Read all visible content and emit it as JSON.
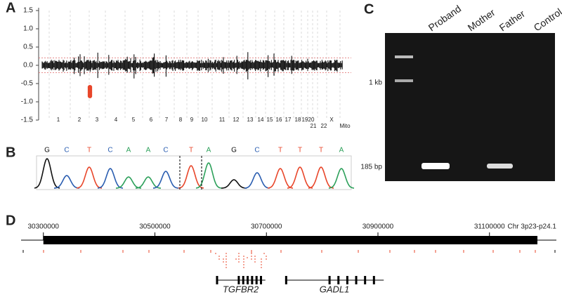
{
  "chart_data": [
    {
      "type": "scatter",
      "label": "A",
      "ylim": [
        -1.5,
        1.5
      ],
      "yticks": [
        1.5,
        {
          "value": 1,
          "label": "1.0"
        },
        0.5,
        {
          "value": 0,
          "label": "0.0"
        },
        -0.5,
        {
          "value": -1,
          "label": "-1.0"
        },
        -1.5
      ],
      "categories": [
        "1",
        "2",
        "3",
        "4",
        "5",
        "6",
        "7",
        "8",
        "9",
        "10",
        "11",
        "12",
        "13",
        "14",
        "15",
        "16",
        "17",
        "18",
        "19",
        "20",
        "21",
        "22",
        "X",
        "Mito"
      ],
      "thresholds": [
        0.2,
        -0.2
      ],
      "highlight": {
        "color": "#e8462a",
        "values": [
          -0.6,
          -0.64,
          -0.68,
          -0.72,
          -0.76,
          -0.8,
          -0.84
        ]
      }
    },
    {
      "type": "genome",
      "label": "D",
      "xlim": [
        30260000,
        31220000
      ],
      "xticks": [
        30300000,
        30500000,
        30700000,
        30900000,
        31100000
      ],
      "region_label": "Chr 3p23-p24.1",
      "deleted_region": [
        30300000,
        31186000
      ],
      "genes": [
        {
          "name": "TGFBR2",
          "start": 30609600,
          "end": 30698100
        },
        {
          "name": "GADL1",
          "start": 30733500,
          "end": 30910400
        }
      ]
    }
  ],
  "sequence": {
    "label": "B",
    "bases": [
      "G",
      "C",
      "T",
      "C",
      "A",
      "A",
      "C",
      "T",
      "A",
      "G",
      "C",
      "T",
      "T",
      "T",
      "A"
    ],
    "colors": {
      "G": "#111111",
      "C": "#2a5db0",
      "T": "#e8462a",
      "A": "#2ca05a"
    }
  },
  "gel": {
    "label": "C",
    "lanes": [
      "Proband",
      "Mother",
      "Father",
      "Control"
    ],
    "markers": [
      "1 kb",
      "185 bp"
    ]
  }
}
